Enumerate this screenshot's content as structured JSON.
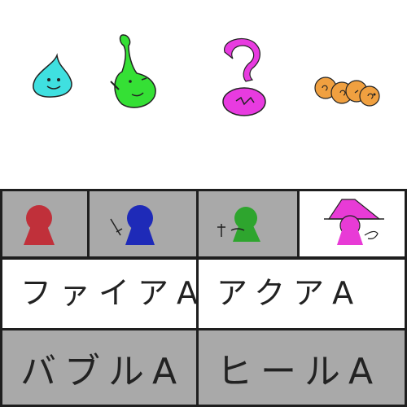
{
  "enemies": [
    {
      "id": "blue-slime",
      "icon": "blue-slime-icon",
      "color": "#3fe0e0"
    },
    {
      "id": "green-slime",
      "icon": "green-slime-icon",
      "color": "#35e035"
    },
    {
      "id": "pink-blob",
      "icon": "pink-blob-icon",
      "color": "#e83be0"
    },
    {
      "id": "orange-caterpillar",
      "icon": "orange-caterpillar-icon",
      "color": "#f0a040"
    }
  ],
  "party": [
    {
      "id": "red-fighter",
      "icon": "red-keyhole-icon",
      "color": "#c0303a",
      "active": false
    },
    {
      "id": "blue-fighter",
      "icon": "blue-keyhole-sword-icon",
      "color": "#1e2ab8",
      "active": false
    },
    {
      "id": "green-priest",
      "icon": "green-keyhole-cross-icon",
      "color": "#2ea52e",
      "active": false
    },
    {
      "id": "pink-mage",
      "icon": "pink-witch-hat-icon",
      "color": "#e83bd6",
      "active": true
    }
  ],
  "commands": {
    "fire": "ファイアA",
    "aqua": "アクアA",
    "bubble": "バブルA",
    "heal": "ヒールA"
  }
}
